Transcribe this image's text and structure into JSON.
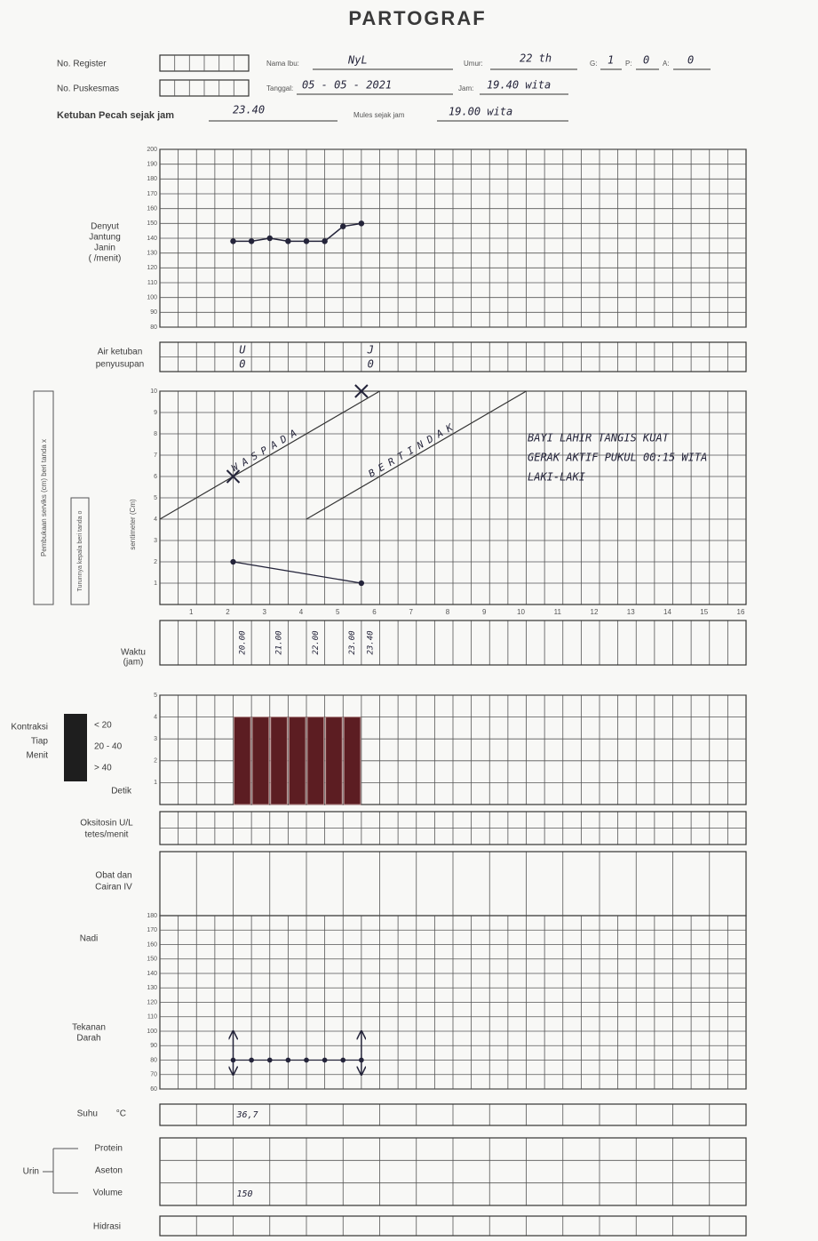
{
  "header": {
    "title": "PARTOGRAF"
  },
  "form": {
    "register": {
      "label": "No. Register"
    },
    "puskesmas": {
      "label": "No. Puskesmas"
    },
    "nama_ibu": {
      "label": "Nama Ibu:",
      "value": "NyL"
    },
    "umur": {
      "label": "Umur:",
      "value": "22 th"
    },
    "g": {
      "label": "G:",
      "value": "1"
    },
    "p": {
      "label": "P:",
      "value": "0"
    },
    "a": {
      "label": "A:",
      "value": "0"
    },
    "tanggal": {
      "label": "Tanggal:",
      "value": "05 - 05 - 2021"
    },
    "jam": {
      "label": "Jam:",
      "value": "19.40 wita"
    },
    "ketuban_pecah": {
      "label": "Ketuban Pecah sejak jam",
      "value": "23.40"
    },
    "mules": {
      "label": "Mules sejak jam",
      "value": "19.00 wita"
    }
  },
  "time": {
    "xlim": [
      0,
      16
    ],
    "xticks": [
      1,
      2,
      3,
      4,
      5,
      6,
      7,
      8,
      9,
      10,
      11,
      12,
      13,
      14,
      15,
      16
    ]
  },
  "fhr": {
    "label": [
      "Denyut",
      "Jantung",
      "Janin",
      "( /menit)"
    ],
    "ylim": [
      80,
      200
    ],
    "yticks": [
      80,
      90,
      100,
      110,
      120,
      130,
      140,
      150,
      160,
      170,
      180,
      190,
      200
    ],
    "x": [
      2,
      2.5,
      3,
      3.5,
      4,
      4.5,
      5,
      5.5
    ],
    "values": [
      138,
      138,
      140,
      138,
      138,
      138,
      148,
      150
    ]
  },
  "air_ketuban": {
    "label": [
      "Air ketuban",
      "penyusupan"
    ],
    "entries": [
      {
        "x": 2,
        "ketuban": "U",
        "penyusupan": "0"
      },
      {
        "x": 5.5,
        "ketuban": "J",
        "penyusupan": "0"
      }
    ]
  },
  "dilatation": {
    "labels": {
      "pembukaan": "Pembukaan serviks (cm) beri tanda x",
      "penurunan": "Turunnya kepala beri tanda o",
      "unit": "sentimeter (Cm)"
    },
    "ylim": [
      0,
      10
    ],
    "yticks": [
      1,
      2,
      3,
      4,
      5,
      6,
      7,
      8,
      9,
      10
    ],
    "alert": {
      "name": "WASPADA",
      "x": [
        0,
        6
      ],
      "values": [
        4,
        10
      ]
    },
    "action": {
      "name": "BERTINDAK",
      "x": [
        4,
        10
      ],
      "values": [
        4,
        10
      ]
    },
    "cervix": {
      "x": [
        2,
        5.5
      ],
      "values": [
        6,
        10
      ]
    },
    "descent": {
      "x": [
        2,
        5.5
      ],
      "values": [
        2,
        1
      ]
    },
    "note": [
      "BAYI LAHIR TANGIS KUAT",
      "GERAK AKTIF PUKUL 00:15 WITA",
      "LAKI-LAKI"
    ]
  },
  "waktu": {
    "label": [
      "Waktu",
      "(jam)"
    ],
    "x": [
      2,
      3,
      4,
      5,
      5.5
    ],
    "times": [
      "20.00",
      "21.00",
      "22.00",
      "23.00",
      "23.40"
    ]
  },
  "kontraksi": {
    "label": [
      "Kontraksi",
      "Tiap",
      "Menit"
    ],
    "legend": [
      "< 20",
      "20 - 40",
      "> 40"
    ],
    "unit": "Detik",
    "ylim": [
      0,
      5
    ],
    "yticks": [
      1,
      2,
      3,
      4,
      5
    ],
    "x": [
      2,
      2.5,
      3,
      3.5,
      4,
      4.5,
      5
    ],
    "values": [
      4,
      4,
      4,
      4,
      4,
      4,
      4
    ],
    "color": "#5c1d22"
  },
  "oksitosin": {
    "label": [
      "Oksitosin U/L",
      "tetes/menit"
    ]
  },
  "obat": {
    "label": [
      "Obat dan",
      "Cairan IV"
    ]
  },
  "nadi_tensi": {
    "nadi_label": "Nadi",
    "tensi_label": [
      "Tekanan",
      "Darah"
    ],
    "ylim": [
      60,
      180
    ],
    "yticks": [
      60,
      70,
      80,
      90,
      100,
      110,
      120,
      130,
      140,
      150,
      160,
      170,
      180
    ],
    "nadi": {
      "x": [
        2,
        2.5,
        3,
        3.5,
        4,
        4.5,
        5,
        5.5
      ],
      "values": [
        80,
        80,
        80,
        80,
        80,
        80,
        80,
        80
      ]
    },
    "bp": {
      "x": [
        2,
        5.5
      ],
      "systolic": [
        100,
        100
      ],
      "diastolic": [
        70,
        70
      ]
    }
  },
  "suhu": {
    "label": "Suhu",
    "unit": "°C",
    "x": 2,
    "value": "36,7"
  },
  "urin": {
    "label": "Urin",
    "rows": [
      "Protein",
      "Aseton",
      "Volume"
    ],
    "volume": {
      "x": 2,
      "value": "150"
    }
  },
  "hidrasi": {
    "label": "Hidrasi"
  }
}
